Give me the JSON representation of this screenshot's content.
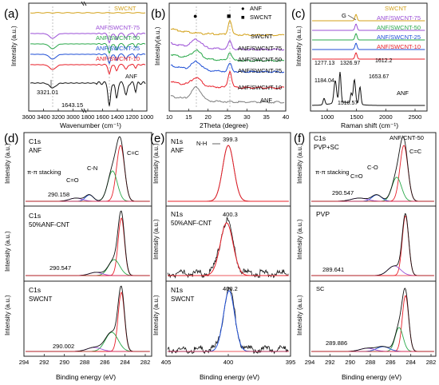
{
  "colors": {
    "black": "#111111",
    "grey": "#7f7f7f",
    "red": "#e8202a",
    "blue": "#1f4fd6",
    "green": "#2aa84a",
    "purple": "#9b4fd6",
    "gold": "#d4a21a",
    "orange": "#d88a2a",
    "pink": "#e05a7a"
  },
  "chart_data": [
    {
      "panel": "(a)",
      "type": "line",
      "xlabel": "Wavenumber (cm⁻¹)",
      "ylabel": "Intensity (a.u.)",
      "xlim": [
        3600,
        1000
      ],
      "xbreak": [
        3000,
        1800
      ],
      "xticks": [
        "3600",
        "3400",
        "3200",
        "3000",
        "1800",
        "1600",
        "1400",
        "1200",
        "1000"
      ],
      "annotations": [
        "3321.01",
        "1643.15"
      ],
      "series": [
        {
          "name": "SWCNT",
          "color": "gold"
        },
        {
          "name": "ANF/SWCNT-75",
          "color": "purple"
        },
        {
          "name": "ANF/SWCNT-50",
          "color": "green"
        },
        {
          "name": "ANF/SWCNT-25",
          "color": "blue"
        },
        {
          "name": "ANF/SWCNT-10",
          "color": "red"
        },
        {
          "name": "ANF",
          "color": "black"
        }
      ]
    },
    {
      "panel": "(b)",
      "type": "line",
      "xlabel": "2Theta (degree)",
      "ylabel": "Intensity(a.u.)",
      "xlim": [
        10,
        40
      ],
      "xticks": [
        "10",
        "15",
        "20",
        "25",
        "30",
        "35",
        "40"
      ],
      "legend": [
        {
          "symbol": "●",
          "label": "ANF"
        },
        {
          "symbol": "■",
          "label": "SWCNT"
        }
      ],
      "series": [
        {
          "name": "SWCNT",
          "color": "gold"
        },
        {
          "name": "ANF/SWCNT-75",
          "color": "purple"
        },
        {
          "name": "ANF/SWCNT-50",
          "color": "green"
        },
        {
          "name": "ANF/SWCNT-25",
          "color": "blue"
        },
        {
          "name": "ANF/SWCNT-10",
          "color": "red"
        },
        {
          "name": "ANF",
          "color": "grey"
        }
      ]
    },
    {
      "panel": "(c)",
      "type": "line",
      "xlabel": "Raman shift (cm⁻¹)",
      "ylabel": "Intensity (a.u.)",
      "xlim": [
        800,
        2800
      ],
      "xticks": [
        "1000",
        "1500",
        "2000",
        "2500"
      ],
      "annotations": [
        "G",
        "1277.13",
        "1326.97",
        "1612.2",
        "1184.04",
        "1653.67",
        "1510.57",
        "ANF"
      ],
      "series": [
        {
          "name": "SWCNT",
          "color": "gold"
        },
        {
          "name": "ANF/SWCNT-75",
          "color": "purple"
        },
        {
          "name": "ANF/SWCNT-50",
          "color": "green"
        },
        {
          "name": "ANF/SWCNT-25",
          "color": "blue"
        },
        {
          "name": "ANF/SWCNT-10",
          "color": "red"
        },
        {
          "name": "ANF",
          "color": "black"
        }
      ]
    },
    {
      "panel": "(d)",
      "type": "line",
      "xlabel": "Binding energy (eV)",
      "ylabel": "Intensity (a.u.)",
      "xlim": [
        294,
        281
      ],
      "xticks": [
        "294",
        "292",
        "290",
        "288",
        "286",
        "284",
        "282"
      ],
      "subplots": [
        {
          "title": "C1s",
          "subtitle": "ANF",
          "annotations": [
            "π-π stacking",
            "C=O",
            "C-N",
            "C=C",
            "290.158"
          ]
        },
        {
          "title": "C1s",
          "subtitle": "50%ANF-CNT",
          "annotations": [
            "290.547"
          ]
        },
        {
          "title": "C1s",
          "subtitle": "SWCNT",
          "annotations": [
            "290.002"
          ]
        }
      ]
    },
    {
      "panel": "(e)",
      "type": "line",
      "xlabel": "Binding energy (eV)",
      "ylabel": "Intensity (a.u.)",
      "xlim": [
        405,
        395
      ],
      "xticks": [
        "405",
        "400",
        "395"
      ],
      "subplots": [
        {
          "title": "N1s",
          "subtitle": "ANF",
          "annotations": [
            "N-H",
            "399.3"
          ]
        },
        {
          "title": "N1s",
          "subtitle": "50%ANF-CNT",
          "annotations": [
            "400.3"
          ]
        },
        {
          "title": "N1s",
          "subtitle": "SWCNT",
          "annotations": [
            "400.2"
          ]
        }
      ]
    },
    {
      "panel": "(f)",
      "type": "line",
      "xlabel": "Binding energy (eV)",
      "ylabel": "Intensity (a.u.)",
      "xlim": [
        294,
        281
      ],
      "xticks": [
        "294",
        "292",
        "290",
        "288",
        "286",
        "284",
        "282"
      ],
      "subplots": [
        {
          "title": "C1s",
          "subtitle": "PVP+SC",
          "annotations": [
            "ANF/CNT-50",
            "π-π stacking",
            "C=O",
            "C-O",
            "C=C",
            "290.547"
          ]
        },
        {
          "title": "PVP",
          "subtitle": "",
          "annotations": [
            "289.641"
          ]
        },
        {
          "title": "SC",
          "subtitle": "",
          "annotations": [
            "289.886"
          ]
        }
      ]
    }
  ],
  "labels": {
    "a": "(a)",
    "b": "(b)",
    "c": "(c)",
    "d": "(d)",
    "e": "(e)",
    "f": "(f)",
    "a_xlabel": "Wavenumber (cm⁻¹)",
    "a_ylabel": "Intensity (a.u.)",
    "b_xlabel": "2Theta (degree)",
    "b_ylabel": "Intensity(a.u.)",
    "c_xlabel": "Raman shift (cm⁻¹)",
    "c_ylabel": "Intensity (a.u.)",
    "d_xlabel": "Binding energy (eV)",
    "e_xlabel": "Binding energy (eV)",
    "f_xlabel": "Binding energy (eV)",
    "xps_ylabel": "Intensity (a.u.)",
    "a_s1": "SWCNT",
    "a_s2": "ANF/SWCNT-75",
    "a_s3": "ANF/SWCNT-50",
    "a_s4": "ANF/SWCNT-25",
    "a_s5": "ANF/SWCNT-10",
    "a_s6": "ANF",
    "a_ann1": "3321.01",
    "a_ann2": "1643.15",
    "b_s1": "SWCNT",
    "b_s2": "ANF/SWCNT-75",
    "b_s3": "ANF/SWCNT-50",
    "b_s4": "ANF/SWCNT-25",
    "b_s5": "ANF/SWCNT-10",
    "b_s6": "ANF",
    "b_leg1": "ANF",
    "b_leg2": "SWCNT",
    "c_s1": "SWCNT",
    "c_s2": "ANF/SWCNT-75",
    "c_s3": "ANF/SWCNT-50",
    "c_s4": "ANF/SWCNT-25",
    "c_s5": "ANF/SWCNT-10",
    "c_s6": "ANF",
    "c_g": "G",
    "c_p1": "1277.13",
    "c_p2": "1326.97",
    "c_p3": "1612.2",
    "c_p4": "1184.04",
    "c_p5": "1653.67",
    "c_p6": "1510.57",
    "d1_t": "C1s",
    "d1_s": "ANF",
    "d1_a1": "π-π stacking",
    "d1_a2": "C=O",
    "d1_a3": "C-N",
    "d1_a4": "C=C",
    "d1_a5": "290.158",
    "d2_t": "C1s",
    "d2_s": "50%ANF-CNT",
    "d2_a1": "290.547",
    "d3_t": "C1s",
    "d3_s": "SWCNT",
    "d3_a1": "290.002",
    "e1_t": "N1s",
    "e1_s": "ANF",
    "e1_a1": "N-H",
    "e1_a2": "399.3",
    "e2_t": "N1s",
    "e2_s": "50%ANF-CNT",
    "e2_a1": "400.3",
    "e3_t": "N1s",
    "e3_s": "SWCNT",
    "e3_a1": "400.2",
    "f1_t": "C1s",
    "f1_s": "PVP+SC",
    "f1_a0": "ANF/CNT-50",
    "f1_a1": "π-π stacking",
    "f1_a2": "C=O",
    "f1_a3": "C-O",
    "f1_a4": "C=C",
    "f1_a5": "290.547",
    "f2_t": "PVP",
    "f2_a1": "289.641",
    "f3_t": "SC",
    "f3_a1": "289.886"
  },
  "ticks": {
    "a": [
      "3600",
      "3400",
      "3200",
      "3000",
      "1800",
      "1600",
      "1400",
      "1200",
      "1000"
    ],
    "b": [
      "10",
      "15",
      "20",
      "25",
      "30",
      "35",
      "40"
    ],
    "c": [
      "1000",
      "1500",
      "2000",
      "2500"
    ],
    "xps_c": [
      "294",
      "292",
      "290",
      "288",
      "286",
      "284",
      "282"
    ],
    "xps_n": [
      "405",
      "400",
      "395"
    ]
  }
}
